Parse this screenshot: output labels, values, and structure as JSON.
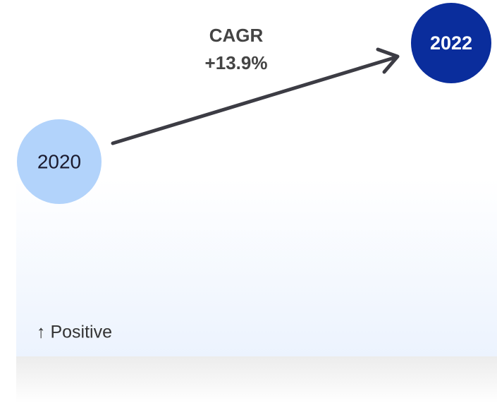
{
  "nodes": [
    {
      "label": "2020"
    },
    {
      "label": "2022"
    }
  ],
  "edge": {
    "title": "CAGR",
    "value": "+13.9%"
  },
  "indicator": "↑ Positive"
}
